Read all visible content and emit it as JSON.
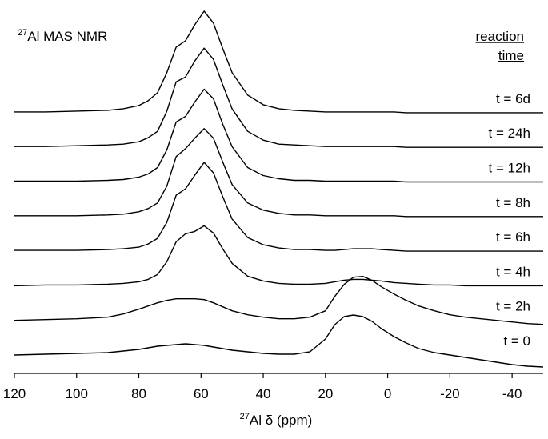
{
  "chart_data": {
    "type": "line",
    "title_sup": "27",
    "title": "Al MAS NMR",
    "legend_title": [
      "reaction",
      "time"
    ],
    "xlabel_sup": "27",
    "xlabel": "Al δ (ppm)",
    "xlim": [
      120,
      -50
    ],
    "xticks": [
      120,
      100,
      80,
      60,
      40,
      20,
      0,
      -20,
      -40
    ],
    "x": [
      120,
      110,
      100,
      90,
      85,
      80,
      77,
      74,
      71,
      68,
      65,
      62,
      59,
      56,
      53,
      50,
      45,
      40,
      35,
      30,
      25,
      20,
      17,
      14,
      11,
      8,
      5,
      2,
      -2,
      -6,
      -10,
      -15,
      -20,
      -25,
      -30,
      -35,
      -40,
      -45,
      -50
    ],
    "series": [
      {
        "name": "t = 0",
        "color": "#000000",
        "values": [
          0,
          1,
          2,
          3,
          5,
          7,
          9,
          11,
          12,
          13,
          14,
          13,
          12,
          10,
          8,
          6,
          4,
          2,
          1,
          1,
          4,
          20,
          38,
          48,
          50,
          48,
          42,
          33,
          23,
          15,
          8,
          3,
          0,
          -3,
          -6,
          -9,
          -12,
          -14,
          -15
        ]
      },
      {
        "name": "t = 2h",
        "color": "#000000",
        "values": [
          0,
          1,
          2,
          4,
          8,
          14,
          18,
          22,
          25,
          27,
          27,
          27,
          26,
          22,
          17,
          12,
          7,
          4,
          2,
          2,
          4,
          12,
          30,
          45,
          54,
          55,
          50,
          42,
          33,
          25,
          18,
          12,
          7,
          4,
          2,
          0,
          -2,
          -4,
          -5
        ]
      },
      {
        "name": "t = 4h",
        "color": "#000000",
        "values": [
          0,
          1,
          1,
          2,
          3,
          5,
          8,
          14,
          30,
          55,
          65,
          68,
          75,
          66,
          46,
          28,
          12,
          6,
          3,
          2,
          2,
          3,
          5,
          7,
          8,
          8,
          7,
          6,
          4,
          3,
          2,
          1,
          1,
          0,
          0,
          0,
          0,
          0,
          0
        ]
      },
      {
        "name": "t = 6h",
        "color": "#000000",
        "values": [
          1,
          1,
          1,
          2,
          3,
          5,
          9,
          16,
          36,
          70,
          78,
          95,
          111,
          98,
          68,
          40,
          17,
          8,
          4,
          2,
          2,
          1,
          1,
          2,
          3,
          3,
          3,
          2,
          1,
          0,
          0,
          0,
          0,
          0,
          0,
          0,
          0,
          0,
          0
        ]
      },
      {
        "name": "t = 8h",
        "color": "#000000",
        "values": [
          1,
          1,
          1,
          2,
          3,
          6,
          10,
          17,
          38,
          75,
          85,
          98,
          110,
          98,
          68,
          40,
          17,
          8,
          4,
          2,
          2,
          1,
          1,
          1,
          1,
          1,
          1,
          1,
          1,
          0,
          0,
          0,
          0,
          0,
          0,
          0,
          0,
          0,
          0
        ]
      },
      {
        "name": "t = 12h",
        "color": "#000000",
        "values": [
          1,
          1,
          1,
          2,
          3,
          6,
          10,
          18,
          40,
          75,
          82,
          100,
          116,
          104,
          72,
          44,
          18,
          8,
          4,
          2,
          2,
          1,
          1,
          1,
          1,
          1,
          1,
          1,
          1,
          0,
          0,
          0,
          0,
          0,
          0,
          0,
          0,
          0,
          0
        ]
      },
      {
        "name": "t = 24h",
        "color": "#000000",
        "values": [
          1,
          1,
          2,
          3,
          4,
          7,
          12,
          20,
          45,
          82,
          88,
          108,
          124,
          110,
          78,
          48,
          20,
          9,
          4,
          3,
          2,
          1,
          1,
          1,
          1,
          1,
          1,
          1,
          1,
          0,
          0,
          0,
          0,
          0,
          0,
          0,
          0,
          0,
          0
        ]
      },
      {
        "name": "t = 6d",
        "color": "#000000",
        "values": [
          1,
          1,
          2,
          3,
          5,
          9,
          15,
          25,
          50,
          82,
          90,
          110,
          127,
          112,
          80,
          50,
          22,
          10,
          5,
          3,
          2,
          1,
          1,
          1,
          1,
          1,
          1,
          1,
          1,
          0,
          0,
          0,
          0,
          0,
          0,
          0,
          0,
          0,
          0
        ]
      }
    ]
  }
}
